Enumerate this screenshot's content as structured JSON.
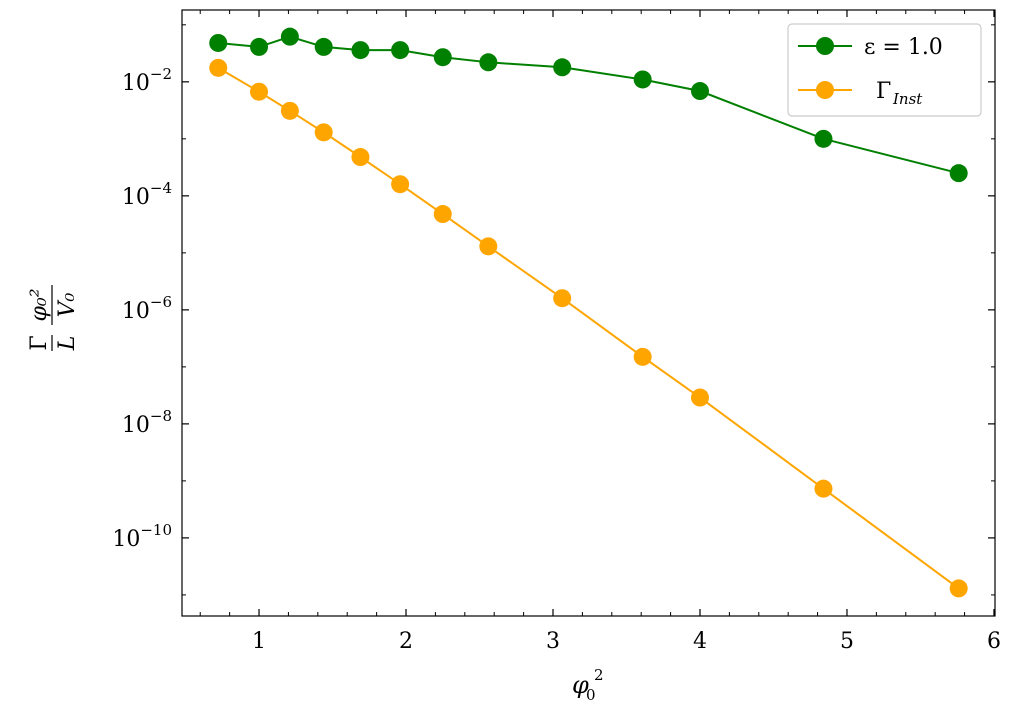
{
  "chart_data": {
    "type": "line",
    "yscale": "log",
    "title": "",
    "xlabel": {
      "base": "φ",
      "sub": "0",
      "sup": "2"
    },
    "ylabel": {
      "num1": "Γ",
      "den1": "L",
      "num2": "φ₀²",
      "den2": "V₀"
    },
    "xlim": [
      0.476,
      6.007
    ],
    "ylim_log10": [
      -11.37,
      -0.74
    ],
    "xticks": [
      1,
      2,
      3,
      4,
      5,
      6
    ],
    "xtick_labels": [
      "1",
      "2",
      "3",
      "4",
      "5",
      "6"
    ],
    "yticks_exp": [
      -2,
      -4,
      -6,
      -8,
      -10
    ],
    "ytick_labels": [
      "10",
      "10",
      "10",
      "10",
      "10"
    ],
    "ytick_sups": [
      "−2",
      "−4",
      "−6",
      "−8",
      "−10"
    ],
    "grid": false,
    "legend_placement": "top-right",
    "series": [
      {
        "name": "ε = 1.0",
        "legend_main": "ε = 1.0",
        "legend_sub": "",
        "color": "#008000",
        "x": [
          0.7225,
          1.0,
          1.21,
          1.44,
          1.69,
          1.96,
          2.25,
          2.56,
          3.0625,
          3.61,
          4.0,
          4.84,
          5.76
        ],
        "y": [
          0.048,
          0.041,
          0.062,
          0.041,
          0.036,
          0.036,
          0.027,
          0.022,
          0.018,
          0.011,
          0.0069,
          0.001,
          0.00025
        ]
      },
      {
        "name": "Γ_Inst",
        "legend_main": "Γ",
        "legend_sub": "Inst",
        "color": "#FFA500",
        "x": [
          0.7225,
          1.0,
          1.21,
          1.44,
          1.69,
          1.96,
          2.25,
          2.56,
          3.0625,
          3.61,
          4.0,
          4.84,
          5.76
        ],
        "y": [
          0.0176,
          0.0067,
          0.0031,
          0.0013,
          0.00048,
          0.00016,
          4.8e-05,
          1.3e-05,
          1.6e-06,
          1.5e-07,
          2.9e-08,
          7.3e-10,
          1.3e-11
        ]
      }
    ]
  }
}
